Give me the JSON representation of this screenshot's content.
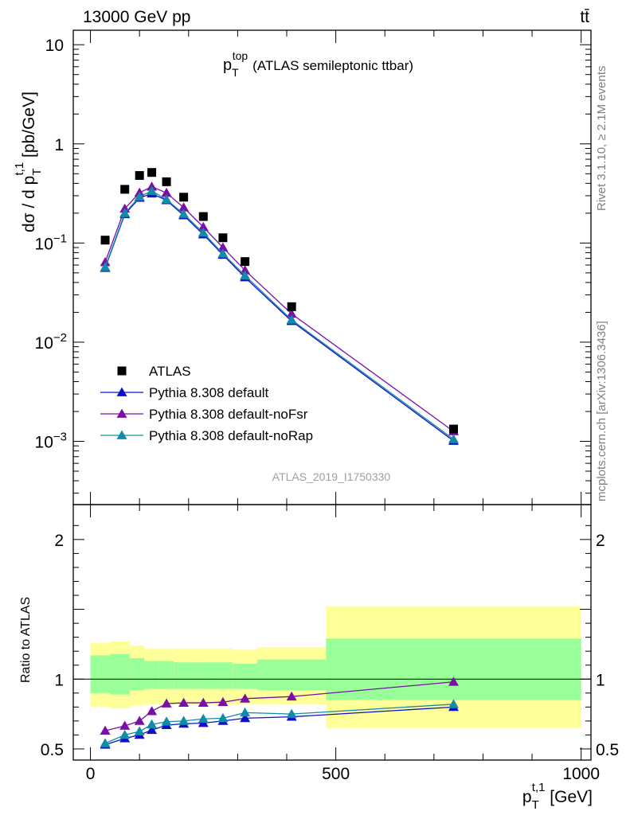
{
  "header": {
    "left": "13000 GeV pp",
    "right": "tt̄"
  },
  "side_labels": {
    "rivet": "Rivet 3.1.10, ≥ 2.1M events",
    "mcplots": "mcplots.cern.ch [arXiv:1306.3436]"
  },
  "watermark": "ATLAS_2019_I1750330",
  "colors": {
    "data": "#000000",
    "default": "#1010c8",
    "noFsr": "#7a0fa6",
    "noRap": "#108ca8",
    "band_outer": "#ffff99",
    "band_inner": "#99ff99"
  },
  "chart_data": [
    {
      "type": "scatter",
      "panel": "main",
      "title": "p_T^top (ATLAS semileptonic ttbar)",
      "title_parts": {
        "main": "p",
        "sub": "T",
        "sup": "top",
        "rest": "(ATLAS semileptonic ttbar)"
      },
      "ylabel": "dσ / d p_T^{t,1} [pb/GeV]",
      "ylabel_parts": {
        "main": "dσ / d p",
        "sub": "T",
        "sup": "t,1",
        "rest": " [pb/GeV]"
      },
      "yscale": "log",
      "xlim": [
        -35,
        1020
      ],
      "ylim": [
        0.00023,
        14
      ],
      "yticks": [
        {
          "value": 10,
          "label": "10"
        },
        {
          "value": 1,
          "label": "1"
        },
        {
          "value": 0.1,
          "label": "10",
          "exp": "−1"
        },
        {
          "value": 0.01,
          "label": "10",
          "exp": "−2"
        },
        {
          "value": 0.001,
          "label": "10",
          "exp": "−3"
        }
      ],
      "legend_position": "bottom-left",
      "series": [
        {
          "name": "ATLAS",
          "kind": "data",
          "x": [
            30,
            70,
            100,
            125,
            155,
            190,
            230,
            270,
            315,
            410,
            740
          ],
          "y": [
            0.107,
            0.348,
            0.48,
            0.515,
            0.415,
            0.29,
            0.185,
            0.113,
            0.065,
            0.0228,
            0.00133
          ]
        },
        {
          "name": "Pythia 8.308 default",
          "kind": "mc",
          "x": [
            30,
            70,
            100,
            125,
            155,
            190,
            230,
            270,
            315,
            410,
            740
          ],
          "y": [
            0.056,
            0.195,
            0.285,
            0.315,
            0.27,
            0.19,
            0.122,
            0.076,
            0.045,
            0.0163,
            0.00101
          ]
        },
        {
          "name": "Pythia 8.308 default-noFsr",
          "kind": "mc",
          "x": [
            30,
            70,
            100,
            125,
            155,
            190,
            230,
            270,
            315,
            410,
            740
          ],
          "y": [
            0.064,
            0.222,
            0.322,
            0.37,
            0.32,
            0.228,
            0.145,
            0.09,
            0.053,
            0.0193,
            0.00126
          ]
        },
        {
          "name": "Pythia 8.308 default-noRap",
          "kind": "mc",
          "x": [
            30,
            70,
            100,
            125,
            155,
            190,
            230,
            270,
            315,
            410,
            740
          ],
          "y": [
            0.057,
            0.2,
            0.293,
            0.335,
            0.275,
            0.196,
            0.127,
            0.078,
            0.047,
            0.0168,
            0.00105
          ]
        }
      ]
    },
    {
      "type": "line",
      "panel": "ratio",
      "ylabel": "Ratio to ATLAS",
      "xlabel": "p_T^{t,1} [GeV]",
      "xlabel_parts": {
        "main": "p",
        "sub": "T",
        "sup": "t,1",
        "rest": " [GeV]"
      },
      "xlim": [
        -35,
        1020
      ],
      "ylim": [
        0.42,
        2.25
      ],
      "xticks": [
        {
          "value": 0,
          "label": "0"
        },
        {
          "value": 500,
          "label": "500"
        },
        {
          "value": 1000,
          "label": "1000"
        }
      ],
      "yticks": [
        {
          "value": 0.5,
          "label": "0.5"
        },
        {
          "value": 1,
          "label": "1"
        },
        {
          "value": 2,
          "label": "2"
        }
      ],
      "reference_line": 1,
      "bands": [
        {
          "x_low": 0,
          "x_high": 40,
          "outer": [
            0.8,
            1.26
          ],
          "inner": [
            0.9,
            1.17
          ]
        },
        {
          "x_low": 40,
          "x_high": 80,
          "outer": [
            0.79,
            1.27
          ],
          "inner": [
            0.89,
            1.18
          ]
        },
        {
          "x_low": 80,
          "x_high": 110,
          "outer": [
            0.81,
            1.24
          ],
          "inner": [
            0.92,
            1.15
          ]
        },
        {
          "x_low": 110,
          "x_high": 140,
          "outer": [
            0.82,
            1.22
          ],
          "inner": [
            0.93,
            1.13
          ]
        },
        {
          "x_low": 140,
          "x_high": 170,
          "outer": [
            0.82,
            1.22
          ],
          "inner": [
            0.93,
            1.13
          ]
        },
        {
          "x_low": 170,
          "x_high": 210,
          "outer": [
            0.82,
            1.22
          ],
          "inner": [
            0.93,
            1.12
          ]
        },
        {
          "x_low": 210,
          "x_high": 250,
          "outer": [
            0.82,
            1.22
          ],
          "inner": [
            0.93,
            1.12
          ]
        },
        {
          "x_low": 250,
          "x_high": 290,
          "outer": [
            0.82,
            1.22
          ],
          "inner": [
            0.93,
            1.12
          ]
        },
        {
          "x_low": 290,
          "x_high": 340,
          "outer": [
            0.82,
            1.21
          ],
          "inner": [
            0.93,
            1.11
          ]
        },
        {
          "x_low": 340,
          "x_high": 480,
          "outer": [
            0.82,
            1.23
          ],
          "inner": [
            0.92,
            1.14
          ]
        },
        {
          "x_low": 480,
          "x_high": 1000,
          "outer": [
            0.65,
            1.52
          ],
          "inner": [
            0.85,
            1.29
          ]
        }
      ],
      "series": [
        {
          "name": "Pythia 8.308 default",
          "x": [
            30,
            70,
            100,
            125,
            155,
            190,
            230,
            270,
            315,
            410,
            740
          ],
          "y": [
            0.53,
            0.575,
            0.6,
            0.635,
            0.67,
            0.68,
            0.685,
            0.7,
            0.72,
            0.73,
            0.8
          ]
        },
        {
          "name": "Pythia 8.308 default-noFsr",
          "x": [
            30,
            70,
            100,
            125,
            155,
            190,
            230,
            270,
            315,
            410,
            740
          ],
          "y": [
            0.63,
            0.665,
            0.7,
            0.77,
            0.825,
            0.83,
            0.83,
            0.835,
            0.86,
            0.875,
            0.98
          ]
        },
        {
          "name": "Pythia 8.308 default-noRap",
          "x": [
            30,
            70,
            100,
            125,
            155,
            190,
            230,
            270,
            315,
            410,
            740
          ],
          "y": [
            0.54,
            0.6,
            0.625,
            0.675,
            0.695,
            0.7,
            0.715,
            0.72,
            0.76,
            0.75,
            0.82
          ]
        }
      ]
    }
  ]
}
